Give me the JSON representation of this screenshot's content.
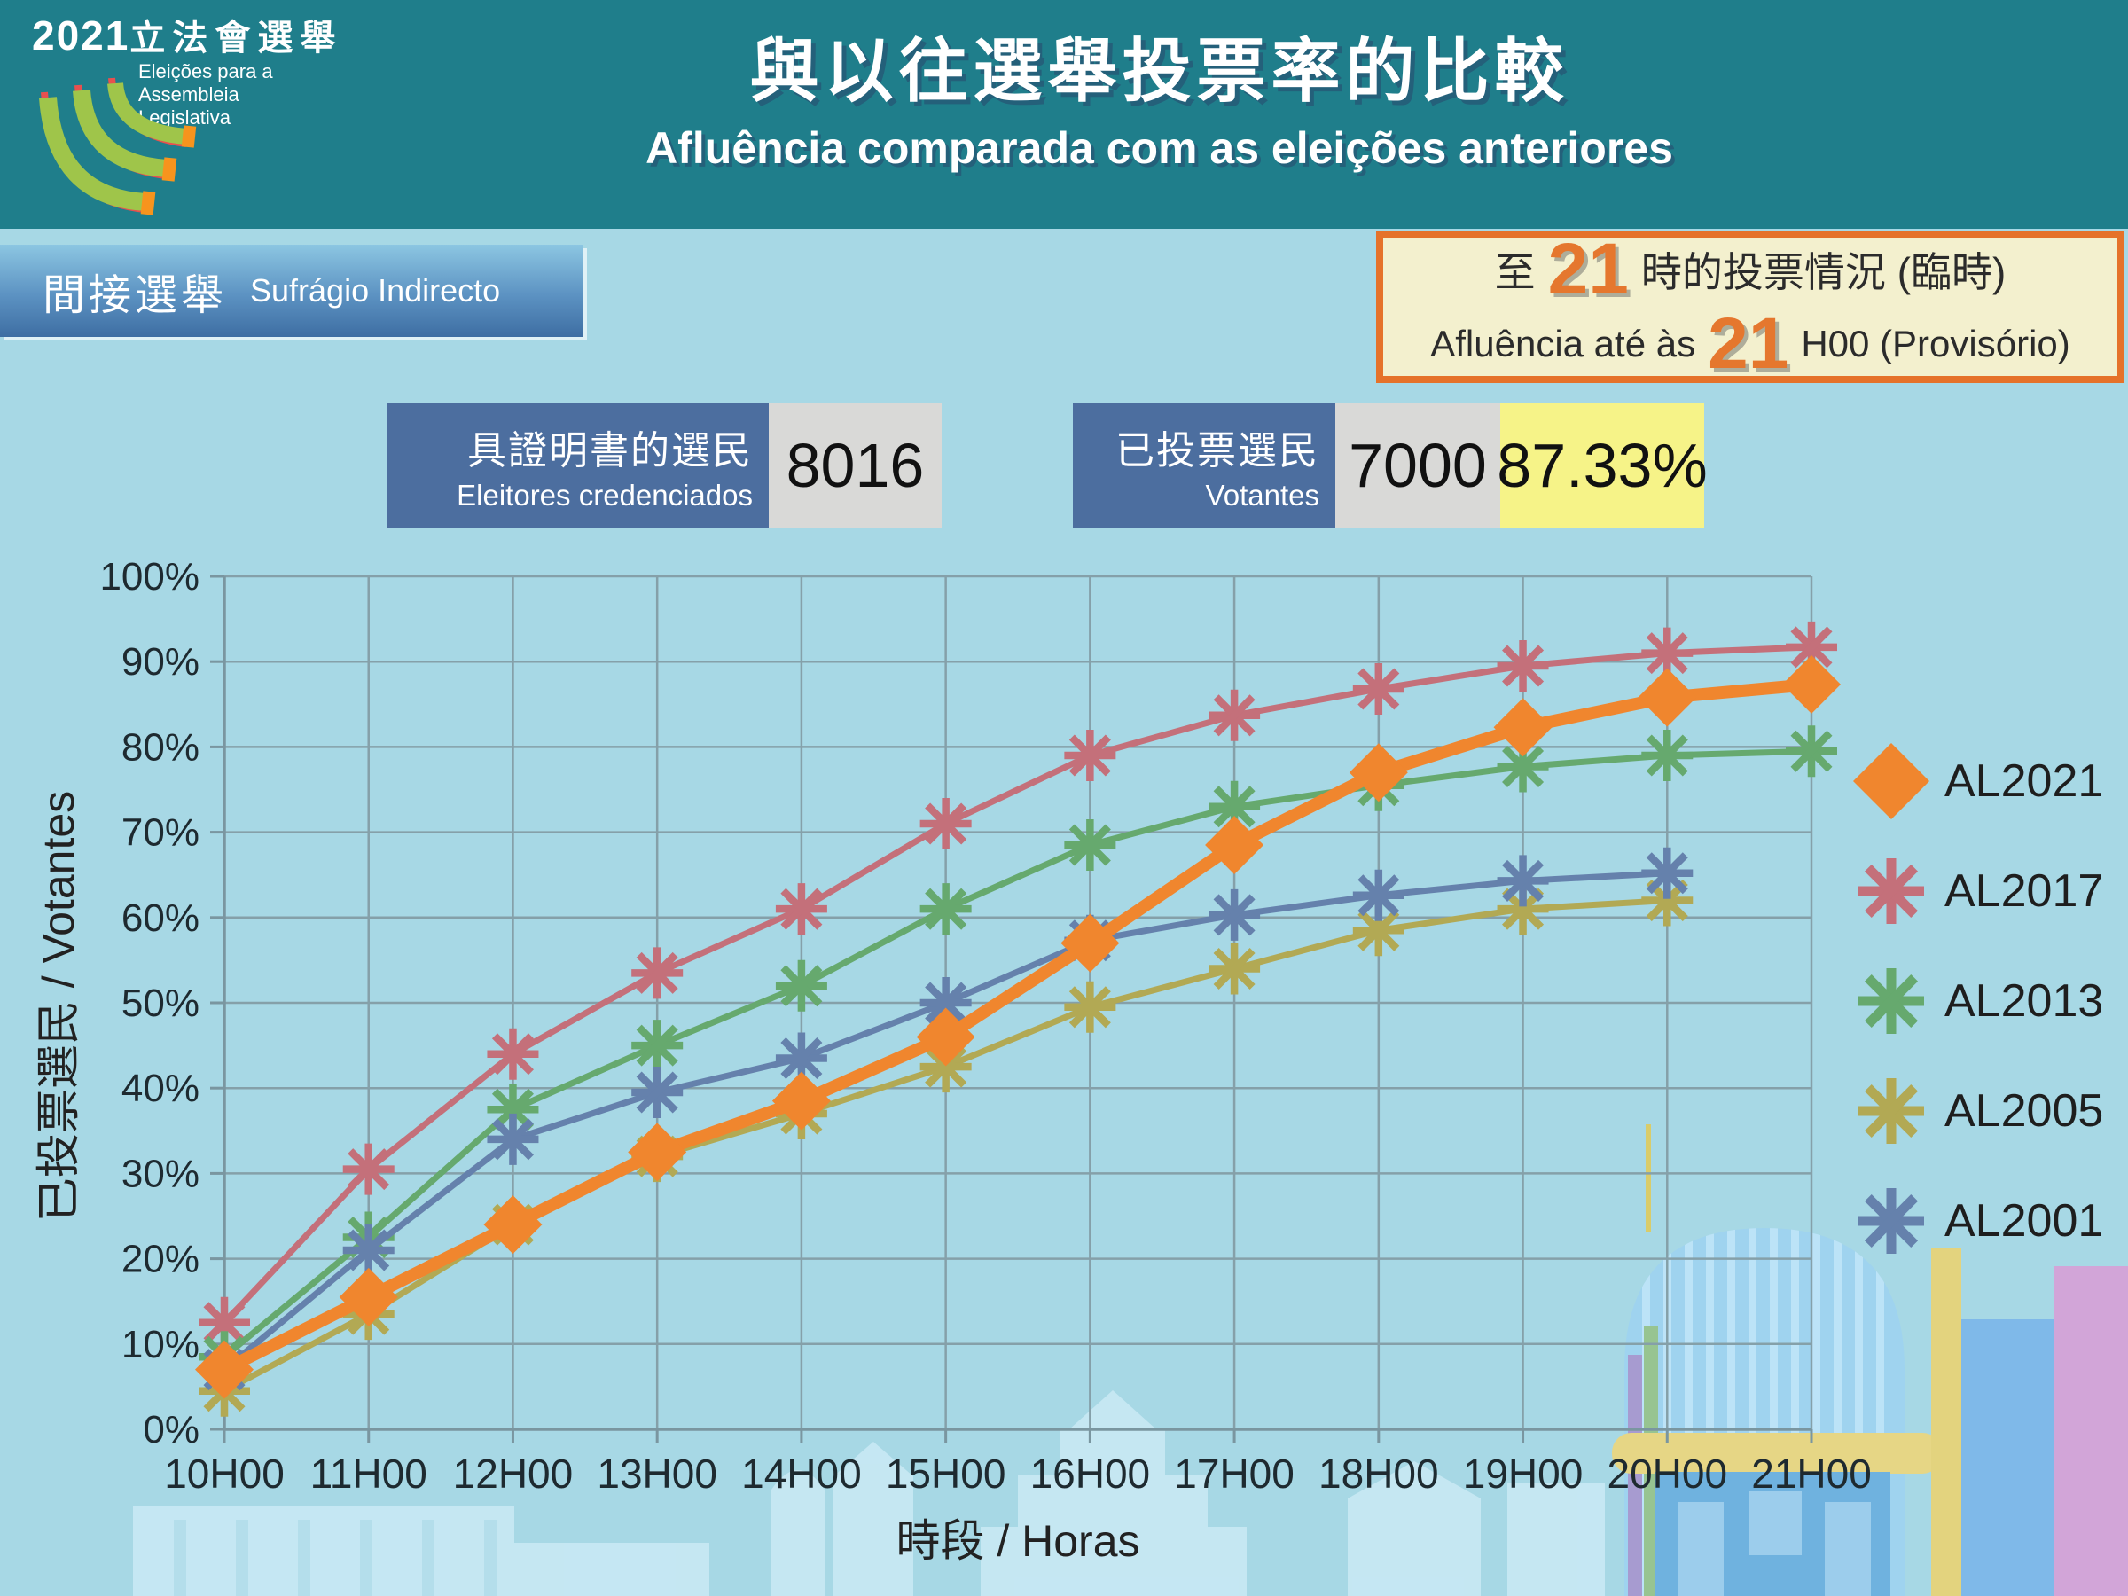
{
  "header": {
    "logo": {
      "year": "2021",
      "cjk": "立法會選舉",
      "pt1": "Eleições para a",
      "pt2": "Assembleia Legislativa"
    },
    "title_cjk": "與以往選舉投票率的比較",
    "title_pt": "Afluência comparada com as eleições anteriores"
  },
  "badge": {
    "cjk": "間接選舉",
    "pt": "Sufrágio Indirecto"
  },
  "info_box": {
    "prefix_cjk": "至",
    "hour": "21",
    "suffix_cjk": "時的投票情況 (臨時)",
    "prefix_pt": "Afluência até às",
    "suffix_pt": "H00 (Provisório)"
  },
  "stats": {
    "credentialed": {
      "label_cjk": "具證明書的選民",
      "label_pt": "Eleitores credenciados",
      "value": "8016"
    },
    "voted": {
      "label_cjk": "已投票選民",
      "label_pt": "Votantes",
      "value": "7000",
      "percent": "87.33%"
    }
  },
  "chart_data": {
    "type": "line",
    "x": [
      "10H00",
      "11H00",
      "12H00",
      "13H00",
      "14H00",
      "15H00",
      "16H00",
      "17H00",
      "18H00",
      "19H00",
      "20H00",
      "21H00"
    ],
    "xlabel": "時段 / Horas",
    "ylabel": "已投票選民 / Votantes",
    "ylim": [
      0,
      100
    ],
    "ytick_step": 10,
    "grid": true,
    "legend_position": "right",
    "colors": {
      "grid": "#85A0A9",
      "axis": "#7A96A0",
      "tick_text": "#1E2A30"
    },
    "series": [
      {
        "name": "AL2021",
        "color": "#F0862E",
        "marker": "diamond",
        "values": [
          7,
          15.5,
          24,
          32.5,
          38.5,
          46,
          57,
          68.5,
          77,
          82.3,
          85.8,
          87.33
        ]
      },
      {
        "name": "AL2017",
        "color": "#C4707A",
        "marker": "asterisk",
        "values": [
          12.5,
          30.5,
          44,
          53.5,
          61,
          71,
          79,
          83.7,
          86.8,
          89.5,
          91,
          91.7
        ]
      },
      {
        "name": "AL2013",
        "color": "#66A96E",
        "marker": "asterisk",
        "values": [
          8.5,
          22.5,
          37.5,
          45,
          52,
          61,
          68.5,
          73,
          75.5,
          77.7,
          79,
          79.5
        ]
      },
      {
        "name": "AL2005",
        "color": "#B2A954",
        "marker": "asterisk",
        "values": [
          4.5,
          13.5,
          24,
          32,
          37,
          42.5,
          49.5,
          54,
          58.5,
          61,
          62,
          null
        ]
      },
      {
        "name": "AL2001",
        "color": "#6581AC",
        "marker": "asterisk",
        "values": [
          7,
          21,
          34,
          39.5,
          43.5,
          50,
          57.3,
          60.3,
          62.6,
          64.3,
          65.2,
          null
        ]
      }
    ]
  }
}
